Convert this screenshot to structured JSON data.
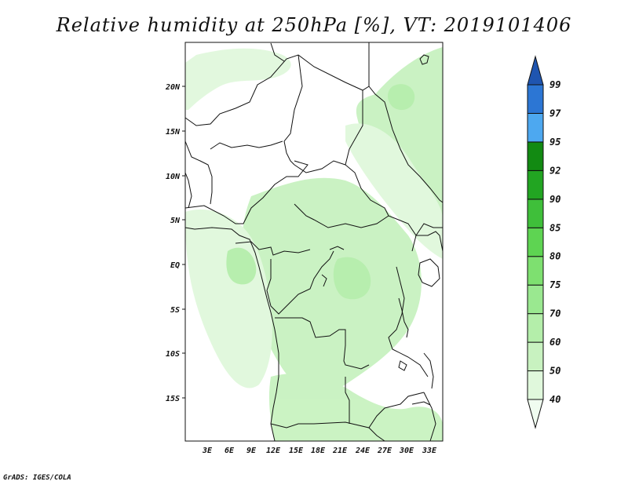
{
  "title": "Relative humidity at 250hPa [%], VT: 2019101406",
  "credit": "GrADS: IGES/COLA",
  "map": {
    "lat_labels": [
      "20N",
      "15N",
      "10N",
      "5N",
      "EQ",
      "5S",
      "10S",
      "15S"
    ],
    "lon_labels": [
      "3E",
      "6E",
      "9E",
      "12E",
      "15E",
      "18E",
      "21E",
      "24E",
      "27E",
      "30E",
      "33E"
    ]
  },
  "colorbar": {
    "levels": [
      "40",
      "50",
      "60",
      "70",
      "75",
      "80",
      "85",
      "90",
      "92",
      "95",
      "97",
      "99"
    ],
    "colors": [
      "#f0fcf0",
      "#e0f8dc",
      "#c8f2c0",
      "#b4eeaa",
      "#9ae890",
      "#7ee070",
      "#5ed452",
      "#3fbf3a",
      "#22a522",
      "#128a12",
      "#4da8f0",
      "#2c76d4",
      "#1f55b0"
    ]
  }
}
